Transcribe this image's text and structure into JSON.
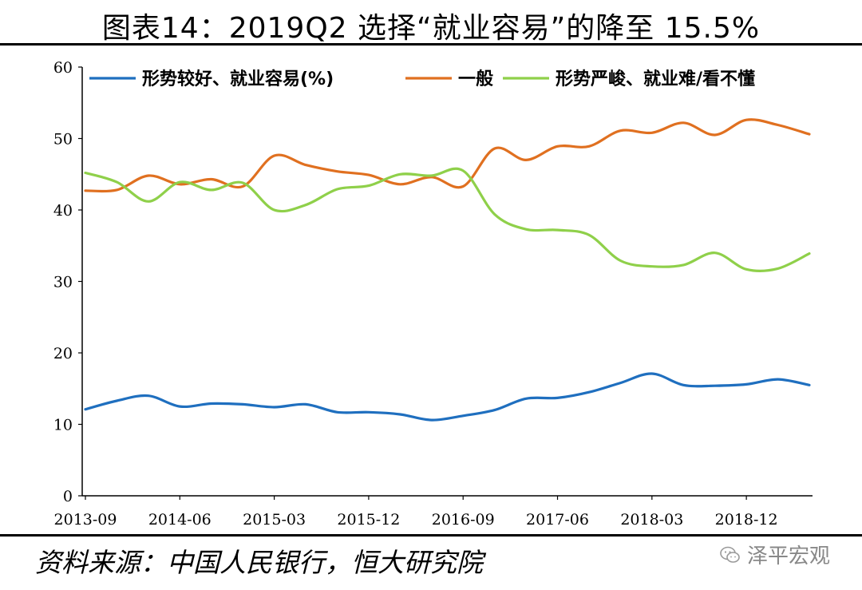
{
  "header": {
    "title": "图表14：2019Q2 选择“就业容易”的降至 15.5%"
  },
  "footer": {
    "source": "资料来源：中国人民银行，恒大研究院",
    "watermark": "泽平宏观",
    "watermark_icon": "wechat-icon"
  },
  "chart_data": {
    "type": "line",
    "title": "图表14：2019Q2 选择“就业容易”的降至 15.5%",
    "xlabel": "",
    "ylabel": "",
    "ylim": [
      0,
      60
    ],
    "yticks": [
      "0",
      "10",
      "20",
      "30",
      "40",
      "50",
      "60"
    ],
    "xtick_labels": [
      "2013-09",
      "2014-06",
      "2015-03",
      "2015-12",
      "2016-09",
      "2017-06",
      "2018-03",
      "2018-12"
    ],
    "x": [
      "2013Q3",
      "2013Q4",
      "2014Q1",
      "2014Q2",
      "2014Q3",
      "2014Q4",
      "2015Q1",
      "2015Q2",
      "2015Q3",
      "2015Q4",
      "2016Q1",
      "2016Q2",
      "2016Q3",
      "2016Q4",
      "2017Q1",
      "2017Q2",
      "2017Q3",
      "2017Q4",
      "2018Q1",
      "2018Q2",
      "2018Q3",
      "2018Q4",
      "2019Q1",
      "2019Q2"
    ],
    "legend_position": "top",
    "grid": false,
    "series": [
      {
        "name": "形势较好、就业容易(%)",
        "color": "#1f6fbf",
        "values": [
          12.1,
          13.3,
          14.0,
          12.5,
          12.9,
          12.8,
          12.4,
          12.8,
          11.7,
          11.7,
          11.4,
          10.6,
          11.2,
          12.0,
          13.6,
          13.7,
          14.5,
          15.8,
          17.1,
          15.5,
          15.4,
          15.6,
          16.3,
          15.5
        ]
      },
      {
        "name": "一般",
        "color": "#e07020",
        "values": [
          42.7,
          42.8,
          44.8,
          43.6,
          44.3,
          43.3,
          47.6,
          46.3,
          45.4,
          44.9,
          43.6,
          44.6,
          43.3,
          48.6,
          47.0,
          48.9,
          48.9,
          51.1,
          50.8,
          52.2,
          50.5,
          52.6,
          51.9,
          50.6
        ]
      },
      {
        "name": "形势严峻、就业难/看不懂",
        "color": "#8fd04a",
        "values": [
          45.2,
          43.9,
          41.2,
          43.9,
          42.8,
          43.8,
          40.0,
          40.7,
          42.9,
          43.4,
          45.0,
          44.8,
          45.5,
          39.4,
          37.3,
          37.2,
          36.5,
          32.9,
          32.1,
          32.3,
          34.0,
          31.7,
          31.8,
          33.9
        ]
      }
    ]
  }
}
